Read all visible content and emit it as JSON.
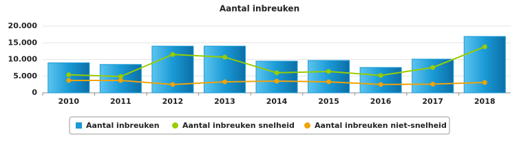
{
  "chart_data": {
    "type": "bar-line",
    "title": "Aantal inbreuken",
    "categories": [
      "2010",
      "2011",
      "2012",
      "2013",
      "2014",
      "2015",
      "2016",
      "2017",
      "2018"
    ],
    "series": [
      {
        "name": "Aantal inbreuken",
        "type": "bar",
        "color": "#1a9ad6",
        "values": [
          9000,
          8500,
          14000,
          14000,
          9500,
          9700,
          7600,
          10100,
          16900
        ]
      },
      {
        "name": "Aantal inbreuken snelheid",
        "type": "line",
        "color": "#99cc00",
        "values": [
          5400,
          4900,
          11500,
          10700,
          6000,
          6400,
          5200,
          7600,
          13800
        ]
      },
      {
        "name": "Aantal inbreuken niet-snelheid",
        "type": "line",
        "color": "#f0a30a",
        "values": [
          3700,
          3700,
          2500,
          3300,
          3500,
          3300,
          2500,
          2600,
          3100
        ]
      }
    ],
    "ylim": [
      0,
      20000
    ],
    "yticks": [
      0,
      {
        "value": 5000,
        "label": "5.000"
      },
      {
        "value": 10000,
        "label": "10.000"
      },
      {
        "value": 15000,
        "label": "15.000"
      },
      {
        "value": 20000,
        "label": "20.000"
      }
    ],
    "grid": true,
    "legend": "bottom"
  }
}
